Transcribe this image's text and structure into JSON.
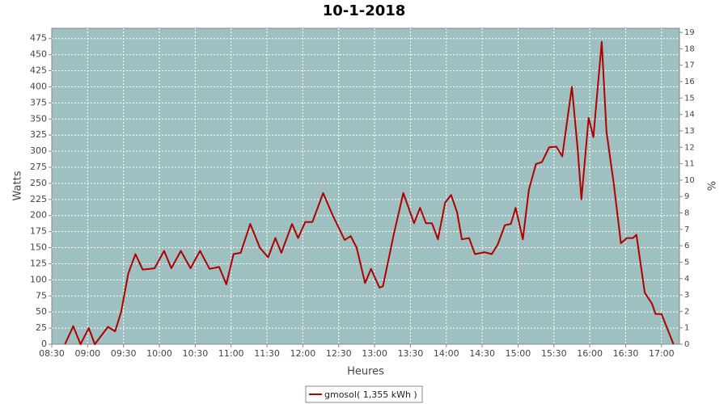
{
  "chart_data": {
    "type": "line",
    "title": "10-1-2018",
    "x_label": "Heures",
    "y_label": "Watts",
    "y2_label": "%",
    "x": [
      "08:41",
      "08:48",
      "08:54",
      "09:01",
      "09:06",
      "09:17",
      "09:23",
      "09:28",
      "09:34",
      "09:40",
      "09:46",
      "09:52",
      "09:56",
      "10:04",
      "10:10",
      "10:18",
      "10:26",
      "10:34",
      "10:42",
      "10:50",
      "10:56",
      "11:02",
      "11:08",
      "11:16",
      "11:24",
      "11:31",
      "11:37",
      "11:42",
      "11:51",
      "11:56",
      "12:02",
      "12:08",
      "12:17",
      "12:25",
      "12:35",
      "12:40",
      "12:45",
      "12:52",
      "12:57",
      "13:04",
      "13:07",
      "13:16",
      "13:24",
      "13:33",
      "13:38",
      "13:43",
      "13:48",
      "13:53",
      "13:59",
      "14:04",
      "14:09",
      "14:13",
      "14:19",
      "14:24",
      "14:32",
      "14:38",
      "14:43",
      "14:49",
      "14:54",
      "14:58",
      "15:04",
      "15:09",
      "15:15",
      "15:20",
      "15:26",
      "15:32",
      "15:37",
      "15:45",
      "15:50",
      "15:53",
      "15:59",
      "16:03",
      "16:10",
      "16:14",
      "16:20",
      "16:26",
      "16:31",
      "16:36",
      "16:39",
      "16:46",
      "16:52",
      "16:55",
      "17:00",
      "17:10"
    ],
    "series": [
      {
        "name": "gmosol( 1,355 kWh )",
        "color": "#b00000",
        "values": [
          0,
          28,
          0,
          25,
          0,
          27,
          20,
          50,
          110,
          140,
          116,
          117,
          118,
          145,
          118,
          145,
          118,
          145,
          117,
          120,
          93,
          140,
          142,
          187,
          150,
          135,
          165,
          142,
          187,
          165,
          190,
          190,
          235,
          200,
          162,
          168,
          150,
          95,
          117,
          88,
          90,
          170,
          235,
          188,
          212,
          188,
          188,
          163,
          220,
          232,
          205,
          163,
          165,
          140,
          143,
          140,
          155,
          185,
          187,
          212,
          163,
          240,
          280,
          283,
          306,
          307,
          292,
          400,
          300,
          225,
          352,
          322,
          470,
          330,
          250,
          157,
          165,
          165,
          170,
          80,
          63,
          47,
          47,
          0
        ]
      }
    ],
    "xlim": [
      "08:30",
      "17:15"
    ],
    "xticks": [
      "08:30",
      "09:00",
      "09:30",
      "10:00",
      "10:30",
      "11:00",
      "11:30",
      "12:00",
      "12:30",
      "13:00",
      "13:30",
      "14:00",
      "14:30",
      "15:00",
      "15:30",
      "16:00",
      "16:30",
      "17:00"
    ],
    "ylim": [
      0,
      491
    ],
    "yticks": [
      0,
      25,
      50,
      75,
      100,
      125,
      150,
      175,
      200,
      225,
      250,
      275,
      300,
      325,
      350,
      375,
      400,
      425,
      450,
      475
    ],
    "y2lim": [
      0,
      19.25
    ],
    "y2ticks": [
      0,
      1,
      2,
      3,
      4,
      5,
      6,
      7,
      8,
      9,
      10,
      11,
      12,
      13,
      14,
      15,
      16,
      17,
      18,
      19
    ],
    "grid": true,
    "plot_background": "#9fc0c0",
    "legend": "bottom"
  }
}
